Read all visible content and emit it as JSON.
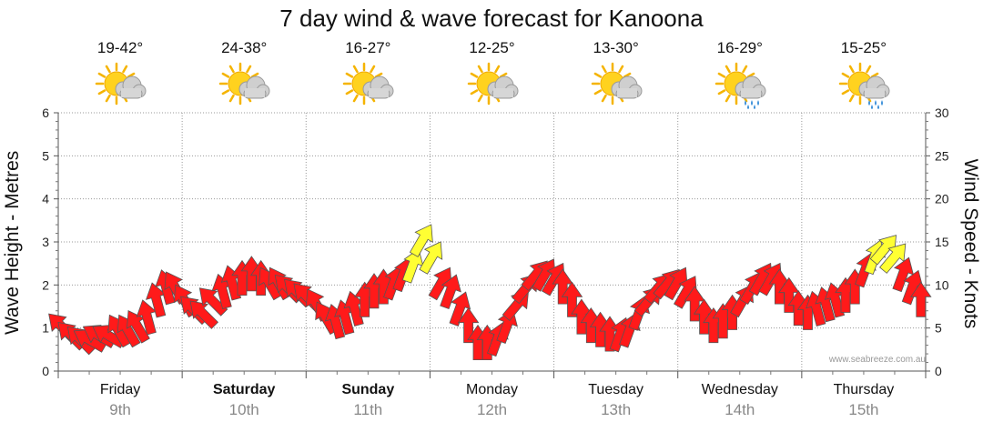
{
  "title": "7 day wind & wave forecast for Kanoona",
  "days": [
    {
      "name": "Friday",
      "date": "9th",
      "temp": "19-42°",
      "icon": "partly-cloudy-icon",
      "bold": false
    },
    {
      "name": "Saturday",
      "date": "10th",
      "temp": "24-38°",
      "icon": "partly-cloudy-icon",
      "bold": true
    },
    {
      "name": "Sunday",
      "date": "11th",
      "temp": "16-27°",
      "icon": "partly-cloudy-icon",
      "bold": true
    },
    {
      "name": "Monday",
      "date": "12th",
      "temp": "12-25°",
      "icon": "partly-cloudy-icon",
      "bold": false
    },
    {
      "name": "Tuesday",
      "date": "13th",
      "temp": "13-30°",
      "icon": "partly-cloudy-icon",
      "bold": false
    },
    {
      "name": "Wednesday",
      "date": "14th",
      "temp": "16-29°",
      "icon": "showers-icon",
      "bold": false
    },
    {
      "name": "Thursday",
      "date": "15th",
      "temp": "15-25°",
      "icon": "showers-icon",
      "bold": false
    }
  ],
  "credit": "www.seabreeze.com.au",
  "colors": {
    "strong": "#ff1a1a",
    "gust": "#ffff33",
    "grid": "#999999"
  },
  "chart_data": {
    "type": "scatter",
    "title": "7 day wind & wave forecast for Kanoona",
    "ylabel_left": "Wave Height - Metres",
    "ylabel_right": "Wind Speed - Knots",
    "ylim_left": [
      0,
      6
    ],
    "ylim_right": [
      0,
      30
    ],
    "yticks_left": [
      "0",
      "1",
      "2",
      "3",
      "4",
      "5",
      "6"
    ],
    "yticks_right": [
      "0",
      "5",
      "10",
      "15",
      "20",
      "25",
      "30"
    ],
    "x_unit": "hours from Friday 00:00",
    "grid": true,
    "series": [
      {
        "name": "Wind Speed - Knots (arrow points downwind)",
        "knots": [
          5,
          4,
          3.5,
          3.5,
          4,
          4,
          4.5,
          4.5,
          5,
          6,
          8,
          9.5,
          9.5,
          8,
          7,
          6.5,
          8,
          9,
          10,
          10.5,
          11,
          10.5,
          10,
          10,
          9.5,
          9,
          8.5,
          7.5,
          6,
          5.5,
          6,
          7,
          8,
          9,
          9.5,
          10,
          11,
          12,
          15,
          13,
          10,
          9,
          7,
          5,
          3,
          3,
          3.5,
          5,
          7.5,
          9.5,
          11,
          11,
          10.5,
          9.5,
          8,
          6,
          5,
          4.5,
          4,
          4,
          4.5,
          6.5,
          8,
          9.5,
          10,
          10,
          9,
          7.5,
          6,
          5,
          5.5,
          6.5,
          8,
          9.5,
          10.5,
          10.5,
          9.5,
          8.5,
          7,
          6.5,
          7,
          7.5,
          8,
          8.5,
          9.5,
          11.5,
          13,
          14,
          13,
          11,
          9.5,
          8
        ],
        "dir_deg": [
          135,
          135,
          135,
          120,
          120,
          120,
          150,
          150,
          150,
          165,
          165,
          165,
          150,
          150,
          135,
          135,
          135,
          165,
          165,
          180,
          180,
          180,
          150,
          150,
          135,
          135,
          135,
          150,
          150,
          165,
          165,
          165,
          180,
          180,
          180,
          200,
          200,
          200,
          210,
          210,
          210,
          200,
          200,
          180,
          180,
          180,
          200,
          200,
          220,
          220,
          220,
          210,
          210,
          180,
          180,
          180,
          180,
          180,
          180,
          200,
          200,
          200,
          220,
          220,
          220,
          210,
          210,
          180,
          180,
          180,
          180,
          180,
          210,
          210,
          210,
          210,
          180,
          180,
          180,
          180,
          165,
          165,
          165,
          180,
          180,
          200,
          200,
          220,
          220,
          200,
          200,
          180
        ]
      }
    ]
  }
}
